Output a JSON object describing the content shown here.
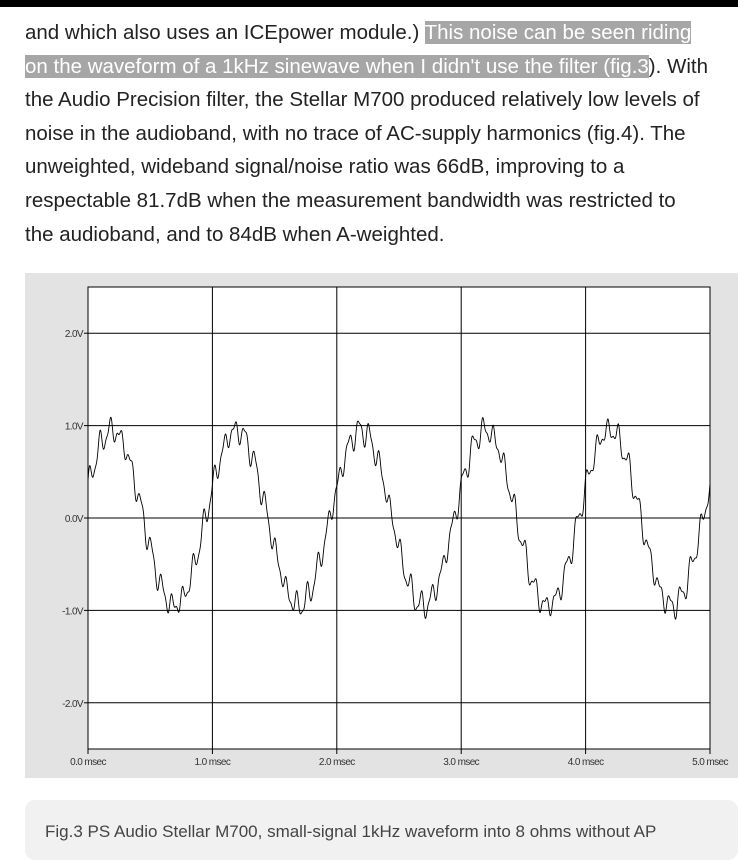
{
  "article": {
    "line1": "and which also uses an ICEpower module.) ",
    "line1_hl": "This noise can be seen riding",
    "line2_hl": "on the waveform of a 1kHz sinewave when I didn't use the filter (fig.3",
    "line2_tail": "). With",
    "line3": "the Audio Precision filter, the Stellar M700 produced relatively low levels of",
    "line4": "noise in the audioband, with no trace of AC-supply harmonics (fig.4). The",
    "line5": "unweighted, wideband signal/noise ratio was 66dB, improving to a",
    "line6": "respectable 81.7dB when the measurement bandwidth was restricted to",
    "line7": "the audioband, and to 84dB when A-weighted."
  },
  "chart_data": {
    "type": "line",
    "title": "",
    "xlabel": "",
    "ylabel": "",
    "x_ticks": [
      "0.0 msec",
      "1.0 msec",
      "2.0 msec",
      "3.0 msec",
      "4.0 msec",
      "5.0 msec"
    ],
    "y_ticks": [
      "2.0V",
      "1.0V",
      "0.0V",
      "-1.0V",
      "-2.0V"
    ],
    "xlim": [
      0,
      5
    ],
    "ylim": [
      -2.5,
      2.5
    ],
    "grid": true,
    "series": [
      {
        "signal": "1kHz sinewave with superimposed high-frequency noise",
        "frequency_hz": 1000,
        "amplitude_v": 0.95,
        "dc_offset_v": 0.0,
        "phase_at_start_deg": 20,
        "noise_peak_v": 0.13,
        "noise_frequency_khz": 12,
        "color": "#000000"
      }
    ]
  },
  "caption": {
    "text": "Fig.3 PS Audio Stellar M700, small-signal 1kHz waveform into 8 ohms without AP"
  }
}
